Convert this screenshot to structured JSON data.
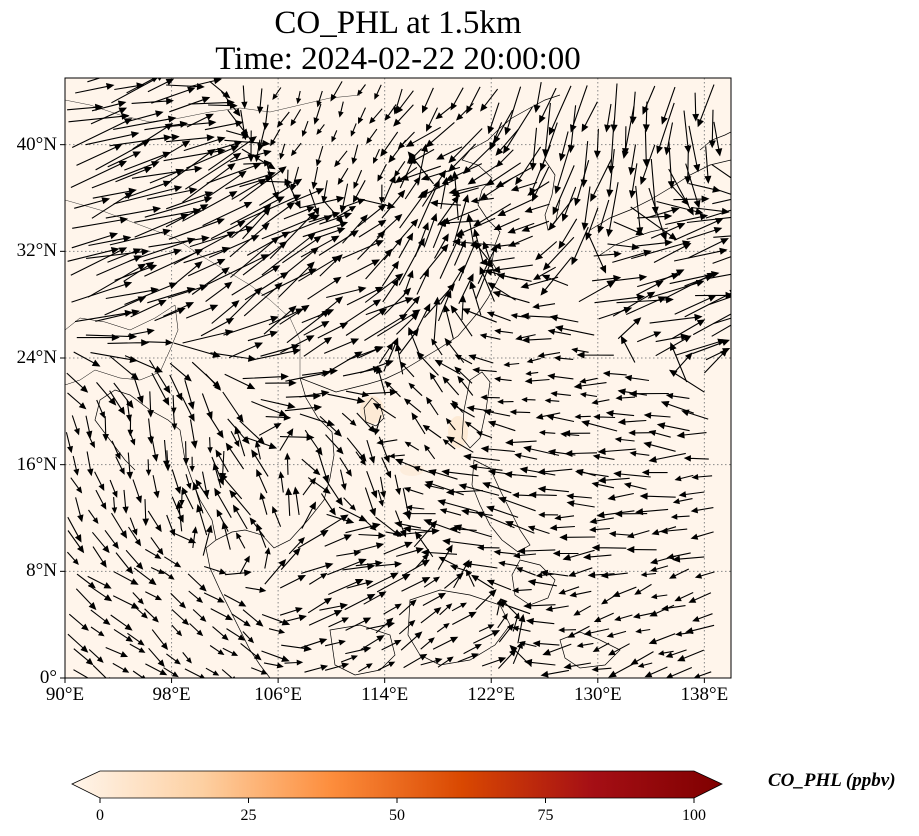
{
  "title": {
    "line1": "CO_PHL at 1.5km",
    "line2": "Time: 2024-02-22 20:00:00"
  },
  "map": {
    "lon_range": [
      90,
      140
    ],
    "lat_range": [
      0,
      45
    ],
    "lon_ticks": [
      90,
      98,
      106,
      114,
      122,
      130,
      138
    ],
    "lat_ticks": [
      0,
      8,
      16,
      24,
      32,
      40
    ],
    "lon_labels": [
      "90°E",
      "98°E",
      "106°E",
      "114°E",
      "122°E",
      "130°E",
      "138°E"
    ],
    "lat_labels": [
      "0°",
      "8°N",
      "16°N",
      "24°N",
      "32°N",
      "40°N"
    ],
    "background_color": "#fff5eb",
    "gridlines": "dotted"
  },
  "colorbar": {
    "label": "CO_PHL (ppbv)",
    "ticks": [
      0,
      25,
      50,
      75,
      100
    ],
    "tick_labels": [
      "0",
      "25",
      "50",
      "75",
      "100"
    ],
    "range": [
      0,
      100
    ],
    "extend": "both",
    "colors": [
      "#fff5eb",
      "#fdd0a2",
      "#fd8d3c",
      "#d94801",
      "#a50f15",
      "#7f0000"
    ]
  },
  "wind_regions": [
    {
      "lon": 94,
      "lat": 33,
      "u": 1,
      "v": 0.35,
      "speed": 1.9
    },
    {
      "lon": 103,
      "lat": 31,
      "u": 0.8,
      "v": 0.6,
      "speed": 1.8
    },
    {
      "lon": 110,
      "lat": 27,
      "u": 0.9,
      "v": 0.45,
      "speed": 1.4
    },
    {
      "lon": 117,
      "lat": 31,
      "u": 0.5,
      "v": 0.85,
      "speed": 1.4
    },
    {
      "lon": 128,
      "lat": 40,
      "u": -0.2,
      "v": -1,
      "speed": 1.5
    },
    {
      "lon": 124,
      "lat": 36,
      "u": -0.9,
      "v": -0.3,
      "speed": 1.1
    },
    {
      "lon": 134,
      "lat": 30,
      "u": 1,
      "v": 0.25,
      "speed": 1.6
    },
    {
      "lon": 110,
      "lat": 41,
      "u": -0.3,
      "v": -0.6,
      "speed": 0.5
    },
    {
      "lon": 118,
      "lat": 19,
      "u": -0.6,
      "v": 0.7,
      "speed": 0.7
    },
    {
      "lon": 112,
      "lat": 16,
      "u": 0.4,
      "v": -0.9,
      "speed": 0.8
    },
    {
      "lon": 104,
      "lat": 12,
      "u": -0.5,
      "v": 0.9,
      "speed": 0.9
    },
    {
      "lon": 110,
      "lat": 8,
      "u": 0.9,
      "v": 0.3,
      "speed": 1.1
    },
    {
      "lon": 122,
      "lat": 12,
      "u": -1,
      "v": 0.15,
      "speed": 1.1
    },
    {
      "lon": 130,
      "lat": 14,
      "u": -1,
      "v": 0.05,
      "speed": 1.0
    },
    {
      "lon": 133,
      "lat": 5,
      "u": -0.9,
      "v": -0.35,
      "speed": 0.7
    },
    {
      "lon": 97,
      "lat": 18,
      "u": 0.2,
      "v": -1,
      "speed": 0.7
    },
    {
      "lon": 100,
      "lat": 4,
      "u": 0.7,
      "v": -0.6,
      "speed": 0.6
    },
    {
      "lon": 117,
      "lat": 3,
      "u": 0.9,
      "v": 0.5,
      "speed": 0.7
    },
    {
      "lon": 126,
      "lat": 22,
      "u": -0.9,
      "v": -0.1,
      "speed": 0.6
    }
  ]
}
